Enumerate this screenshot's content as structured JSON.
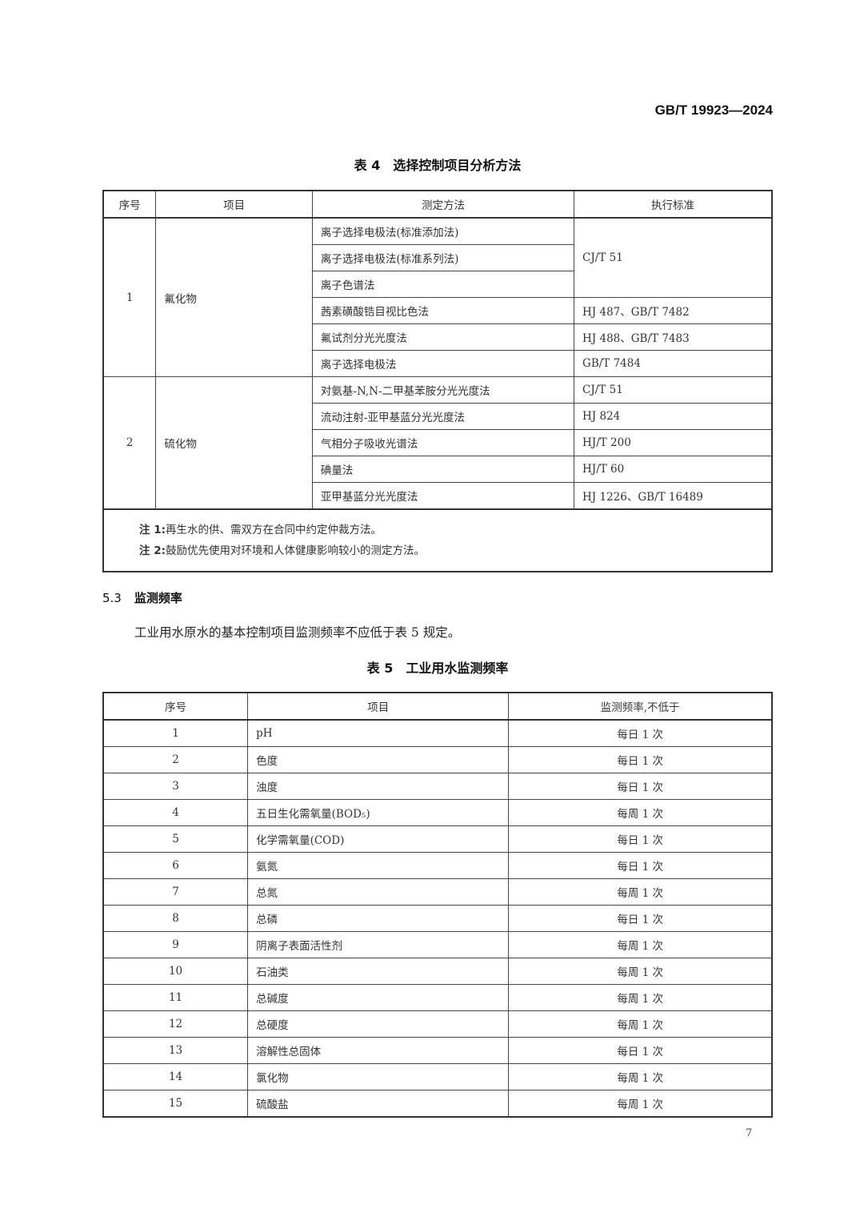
{
  "header": {
    "standard_code": "GB/T 19923—2024"
  },
  "table4": {
    "caption": "表 4　选择控制项目分析方法",
    "columns": [
      "序号",
      "项目",
      "测定方法",
      "执行标准"
    ],
    "groups": [
      {
        "no": "1",
        "item": "氟化物",
        "rows": [
          {
            "method": "离子选择电极法(标准添加法)",
            "standard": "CJ/T 51",
            "span": 3
          },
          {
            "method": "离子选择电极法(标准系列法)"
          },
          {
            "method": "离子色谱法"
          },
          {
            "method": "茜素磺酸锆目视比色法",
            "standard": "HJ 487、GB/T 7482",
            "span": 1
          },
          {
            "method": "氟试剂分光光度法",
            "standard": "HJ 488、GB/T 7483",
            "span": 1
          },
          {
            "method": "离子选择电极法",
            "standard": "GB/T 7484",
            "span": 1
          }
        ]
      },
      {
        "no": "2",
        "item": "硫化物",
        "rows": [
          {
            "method": "对氨基-N,N-二甲基苯胺分光光度法",
            "standard": "CJ/T 51",
            "span": 1
          },
          {
            "method": "流动注射-亚甲基蓝分光光度法",
            "standard": "HJ 824",
            "span": 1
          },
          {
            "method": "气相分子吸收光谱法",
            "standard": "HJ/T 200",
            "span": 1
          },
          {
            "method": "碘量法",
            "standard": "HJ/T 60",
            "span": 1
          },
          {
            "method": "亚甲基蓝分光光度法",
            "standard": "HJ 1226、GB/T 16489",
            "span": 1
          }
        ]
      }
    ],
    "notes": [
      {
        "label": "注 1:",
        "text": "再生水的供、需双方在合同中约定仲裁方法。"
      },
      {
        "label": "注 2:",
        "text": "鼓励优先使用对环境和人体健康影响较小的测定方法。"
      }
    ]
  },
  "section": {
    "number": "5.3",
    "title": "监测频率",
    "paragraph": "工业用水原水的基本控制项目监测频率不应低于表 5 规定。"
  },
  "table5": {
    "caption": "表 5　工业用水监测频率",
    "columns": [
      "序号",
      "项目",
      "监测频率,不低于"
    ],
    "rows": [
      [
        "1",
        "pH",
        "每日 1 次"
      ],
      [
        "2",
        "色度",
        "每日 1 次"
      ],
      [
        "3",
        "浊度",
        "每日 1 次"
      ],
      [
        "4",
        "五日生化需氧量(BOD₅)",
        "每周 1 次"
      ],
      [
        "5",
        "化学需氧量(COD)",
        "每日 1 次"
      ],
      [
        "6",
        "氨氮",
        "每日 1 次"
      ],
      [
        "7",
        "总氮",
        "每周 1 次"
      ],
      [
        "8",
        "总磷",
        "每日 1 次"
      ],
      [
        "9",
        "阴离子表面活性剂",
        "每周 1 次"
      ],
      [
        "10",
        "石油类",
        "每周 1 次"
      ],
      [
        "11",
        "总碱度",
        "每周 1 次"
      ],
      [
        "12",
        "总硬度",
        "每周 1 次"
      ],
      [
        "13",
        "溶解性总固体",
        "每日 1 次"
      ],
      [
        "14",
        "氯化物",
        "每周 1 次"
      ],
      [
        "15",
        "硫酸盐",
        "每周 1 次"
      ]
    ]
  },
  "footer": {
    "page_number": "7"
  }
}
